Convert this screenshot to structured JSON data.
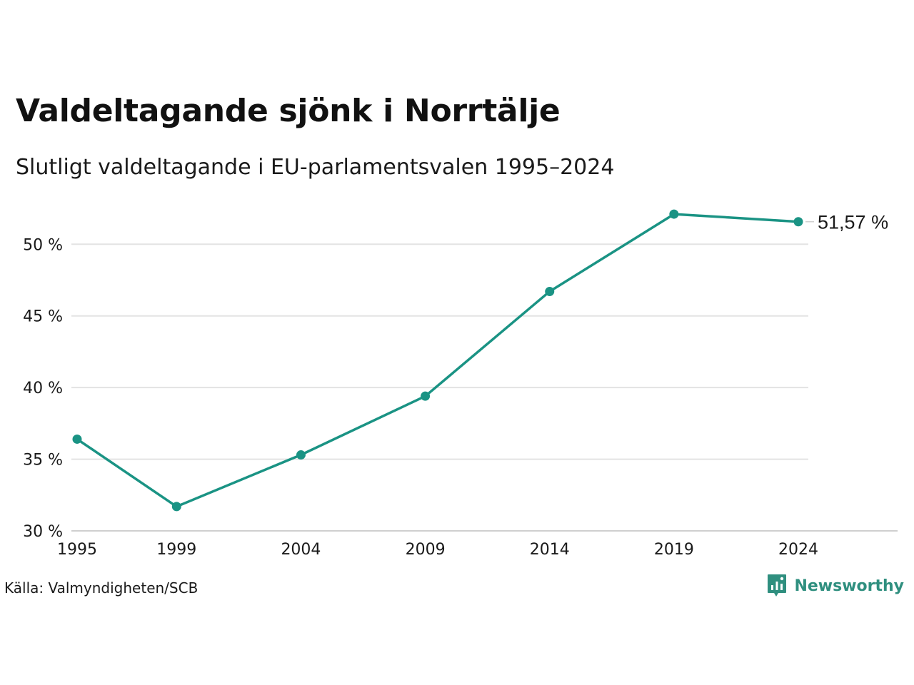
{
  "title": "Valdeltagande sjönk i Norrtälje",
  "subtitle": "Slutligt valdeltagande i EU-parlamentsvalen 1995–2024",
  "source": "Källa: Valmyndigheten/SCB",
  "brand": {
    "name": "Newsworthy",
    "icon": "newsworthy-logo-icon"
  },
  "colors": {
    "line": "#1a9384",
    "grid": "#e3e3e3",
    "axis": "#cfcfcf",
    "brand": "#2f8f7f"
  },
  "chart_data": {
    "type": "line",
    "x": [
      1995,
      1999,
      2004,
      2009,
      2014,
      2019,
      2024
    ],
    "series": [
      {
        "values": [
          36.4,
          31.7,
          35.3,
          39.4,
          46.7,
          52.1,
          51.57
        ]
      }
    ],
    "ylim": [
      30,
      53
    ],
    "yticks": [
      30,
      35,
      40,
      45,
      50
    ],
    "ytick_labels": [
      "30 %",
      "35 %",
      "40 %",
      "45 %",
      "50 %"
    ],
    "xtick_labels": [
      "1995",
      "1999",
      "2004",
      "2009",
      "2014",
      "2019",
      "2024"
    ],
    "end_label": "51,57 %",
    "grid": true,
    "markers": true
  }
}
